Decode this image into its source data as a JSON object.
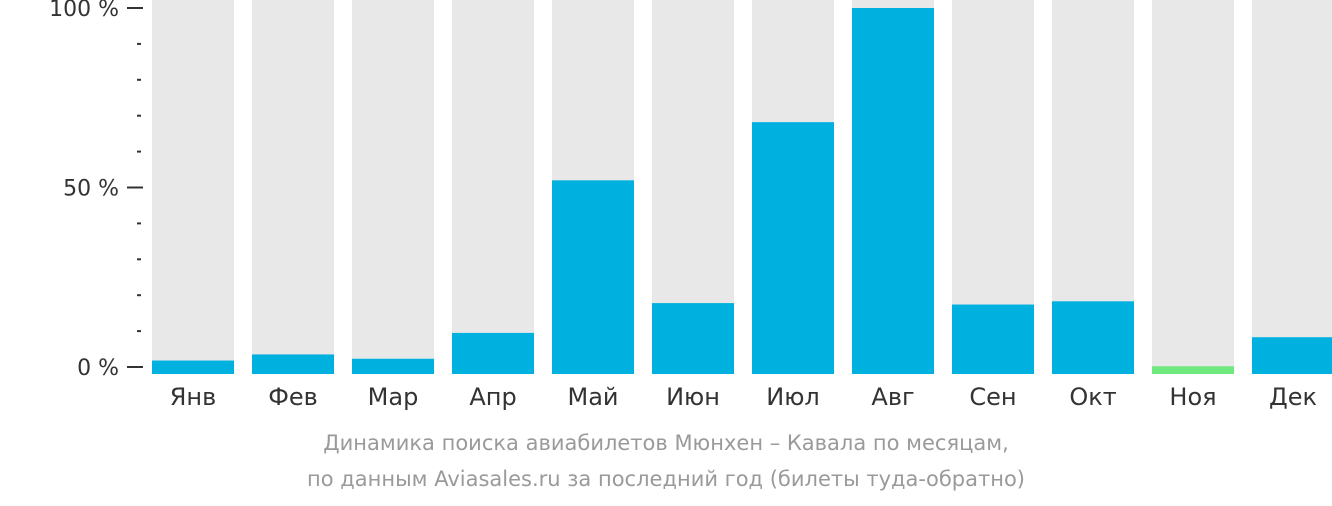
{
  "chart_data": {
    "type": "bar",
    "categories": [
      "Янв",
      "Фев",
      "Мар",
      "Апр",
      "Май",
      "Июн",
      "Июл",
      "Авг",
      "Сен",
      "Окт",
      "Ноя",
      "Дек"
    ],
    "values": [
      1.8,
      3.5,
      2.3,
      9.5,
      52,
      17.8,
      68.2,
      100,
      17.4,
      18.3,
      0.2,
      8.3
    ],
    "highlight_index": 10,
    "ylim": [
      0,
      100
    ],
    "y_ticks": [
      {
        "value": 0,
        "label": "0 %"
      },
      {
        "value": 50,
        "label": "50 %"
      },
      {
        "value": 100,
        "label": "100 %"
      }
    ],
    "y_minor_step": 10,
    "caption": [
      "Динамика поиска авиабилетов Мюнхен – Кавала по месяцам,",
      "по данным Aviasales.ru за последний год (билеты туда-обратно)"
    ],
    "colors": {
      "bar": "#00b0de",
      "highlight": "#6fe87e",
      "track": "#e8e8e8",
      "axis": "#333333",
      "label": "#333333",
      "caption": "#9a9a9a"
    }
  }
}
